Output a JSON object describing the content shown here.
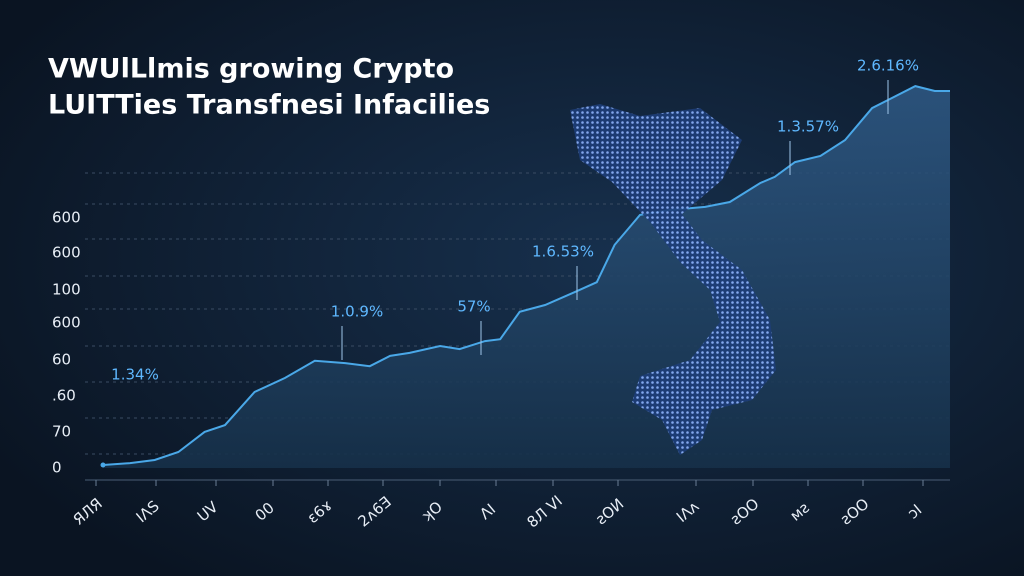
{
  "chart_data": {
    "type": "area",
    "title": [
      "VWUlLlmis growing Crypto",
      "LUITTies Transfnesi Infacilies"
    ],
    "y_axis_labels": [
      "600",
      "600",
      "100",
      "600",
      "60",
      ".60",
      "70",
      "0"
    ],
    "categories": [
      "ЯЛЯ",
      "IΛS",
      "UV",
      "00",
      "ɛ6ɤ",
      "2ᴧ6Ǝ",
      "ʞO",
      "ΛI",
      "8Л VI",
      "ƨOИ",
      "IΛᴧ",
      "ƨOO",
      "ᴍƨ",
      "ƨOO",
      "ɔI"
    ],
    "annotations": [
      "1.34%",
      "1.0.9%",
      "57%",
      "1.6.53%",
      "1.3.57%",
      "2.6.16%"
    ],
    "x": [
      0,
      3.2,
      6.1,
      8.9,
      12,
      14.4,
      17.9,
      21.5,
      25,
      28.6,
      31.5,
      33.9,
      36.2,
      39.8,
      42.1,
      45.1,
      46.9,
      49.2,
      52.2,
      55.7,
      58.3,
      60.4,
      63.4,
      66.9,
      71.1,
      74,
      77.6,
      79.3,
      81.7,
      84.7,
      87.6,
      90.8,
      95.9,
      98.2,
      100
    ],
    "values": [
      0.8,
      1.3,
      2.1,
      4.2,
      9.5,
      11.3,
      20,
      23.7,
      28.2,
      27.6,
      26.8,
      29.5,
      30.3,
      32.1,
      31.3,
      33.4,
      33.9,
      41.1,
      42.9,
      46.3,
      48.9,
      58.7,
      66.6,
      67.9,
      68.7,
      70,
      75,
      76.6,
      80.5,
      82.1,
      86.3,
      94.7,
      100.5,
      99.2,
      99.2
    ],
    "xlim": [
      0,
      100
    ],
    "ylim": [
      0,
      100
    ],
    "color": "#4aa8e8"
  }
}
